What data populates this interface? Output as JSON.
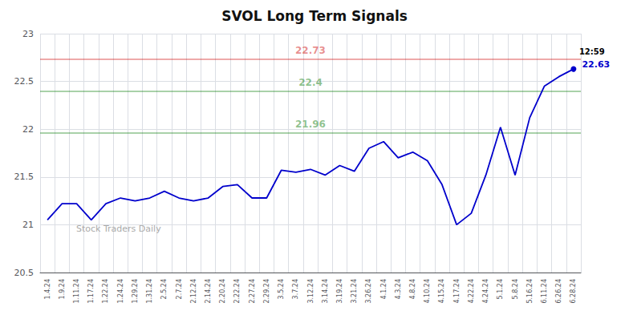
{
  "chart_data": {
    "type": "line",
    "title": "SVOL Long Term Signals",
    "categories": [
      "1.4.24",
      "1.9.24",
      "1.11.24",
      "1.17.24",
      "1.22.24",
      "1.24.24",
      "1.29.24",
      "1.31.24",
      "2.5.24",
      "2.7.24",
      "2.12.24",
      "2.14.24",
      "2.20.24",
      "2.22.24",
      "2.27.24",
      "2.29.24",
      "3.5.24",
      "3.7.24",
      "3.12.24",
      "3.14.24",
      "3.19.24",
      "3.21.24",
      "3.26.24",
      "4.1.24",
      "4.3.24",
      "4.8.24",
      "4.10.24",
      "4.15.24",
      "4.17.24",
      "4.22.24",
      "4.24.24",
      "5.1.24",
      "5.8.24",
      "5.16.24",
      "6.11.24",
      "6.26.24",
      "6.28.24"
    ],
    "values": [
      21.05,
      21.22,
      21.22,
      21.05,
      21.22,
      21.28,
      21.25,
      21.28,
      21.35,
      21.28,
      21.25,
      21.28,
      21.4,
      21.42,
      21.28,
      21.28,
      21.57,
      21.55,
      21.58,
      21.52,
      21.62,
      21.56,
      21.8,
      21.87,
      21.7,
      21.76,
      21.67,
      21.42,
      21.0,
      21.12,
      21.52,
      22.02,
      21.52,
      22.12,
      22.45,
      22.55,
      22.63
    ],
    "color": "#0000cc",
    "ylim": [
      20.5,
      23.0
    ],
    "yticks": [
      20.5,
      21,
      21.5,
      22,
      22.5,
      23
    ],
    "grid": true,
    "reference_lines": [
      {
        "value": 22.73,
        "label": "22.73",
        "color": "#cc0000"
      },
      {
        "value": 22.4,
        "label": "22.4",
        "color": "#007700"
      },
      {
        "value": 21.96,
        "label": "21.96",
        "color": "#007700"
      }
    ],
    "annotations": [
      {
        "text": "12:59",
        "x": "6.28.24"
      },
      {
        "text": "22.63",
        "x": "6.28.24",
        "y": 22.63
      }
    ],
    "watermark": "Stock Traders Daily"
  }
}
